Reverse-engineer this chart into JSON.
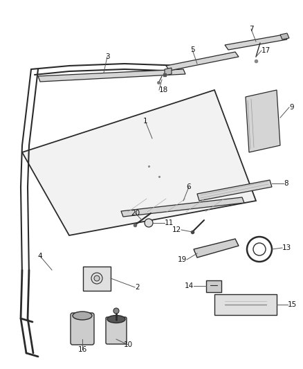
{
  "bg_color": "#ffffff",
  "line_color": "#2a2a2a",
  "label_color": "#111111",
  "leader_color": "#555555",
  "glass_face": "#f5f5f5",
  "strip_face": "#d8d8d8",
  "strip_dark": "#aaaaaa",
  "label_fs": 7.5
}
